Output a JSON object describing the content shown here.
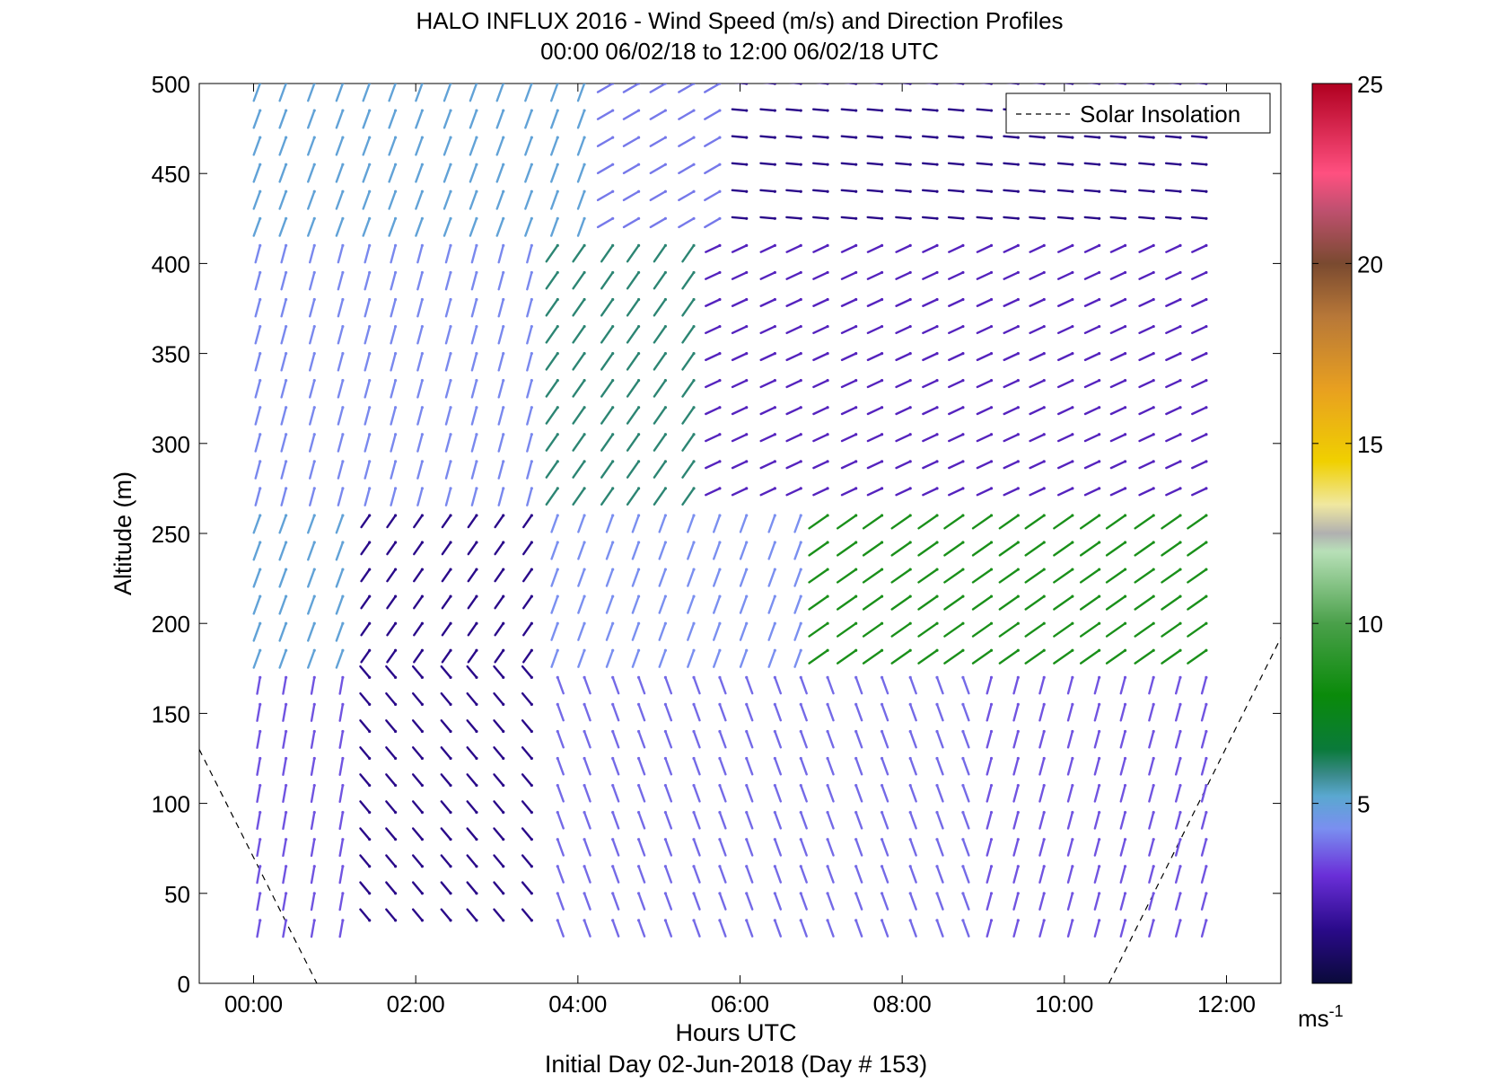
{
  "chart_data": {
    "type": "wind-barb-profile",
    "title": "HALO INFLUX 2016 - Wind Speed (m/s) and Direction Profiles",
    "subtitle": "00:00 06/02/18 to 12:00 06/02/18  UTC",
    "xlabel": "Hours UTC",
    "ylabel": "Altitude (m)",
    "footer": "Initial Day 02-Jun-2018 (Day # 153)",
    "xlim": [
      -0.67,
      12.67
    ],
    "ylim": [
      0,
      500
    ],
    "xticks": [
      0,
      2,
      4,
      6,
      8,
      10,
      12
    ],
    "xtick_labels": [
      "00:00",
      "02:00",
      "04:00",
      "06:00",
      "08:00",
      "10:00",
      "12:00"
    ],
    "yticks": [
      0,
      50,
      100,
      150,
      200,
      250,
      300,
      350,
      400,
      450,
      500
    ],
    "ytick_labels": [
      "0",
      "50",
      "100",
      "150",
      "200",
      "250",
      "300",
      "350",
      "400",
      "450",
      "500"
    ],
    "legend": {
      "entries": [
        "Solar Insolation"
      ],
      "placement": "top-right",
      "line_style": "dashed"
    },
    "colorbar": {
      "label_main": "ms",
      "label_sup": "-1",
      "range": [
        0,
        25
      ],
      "ticks": [
        5,
        10,
        15,
        20,
        25
      ],
      "tick_labels": [
        "5",
        "10",
        "15",
        "20",
        "25"
      ],
      "stops": [
        {
          "v": 0,
          "color": "#0a0a3a"
        },
        {
          "v": 1.5,
          "color": "#2a0a8a"
        },
        {
          "v": 3,
          "color": "#6a2fd8"
        },
        {
          "v": 4.3,
          "color": "#7a8ff0"
        },
        {
          "v": 5.2,
          "color": "#5aa8d0"
        },
        {
          "v": 5.8,
          "color": "#3a8a8a"
        },
        {
          "v": 6.5,
          "color": "#0a7a3a"
        },
        {
          "v": 8,
          "color": "#0a8a0a"
        },
        {
          "v": 10,
          "color": "#4aa04a"
        },
        {
          "v": 12,
          "color": "#b8e0b8"
        },
        {
          "v": 12.5,
          "color": "#b0b0b0"
        },
        {
          "v": 13.3,
          "color": "#f0e8a0"
        },
        {
          "v": 14.5,
          "color": "#f0d000"
        },
        {
          "v": 16.5,
          "color": "#e8a020"
        },
        {
          "v": 18.5,
          "color": "#b87838"
        },
        {
          "v": 20,
          "color": "#7a4a30"
        },
        {
          "v": 21.5,
          "color": "#c05070"
        },
        {
          "v": 22.5,
          "color": "#ff5080"
        },
        {
          "v": 25,
          "color": "#b00020"
        }
      ]
    },
    "solar_insolation": [
      {
        "x": [
          -0.67,
          0.78
        ],
        "y": [
          130,
          0
        ]
      },
      {
        "x": [
          10.55,
          12.67
        ],
        "y": [
          0,
          192
        ]
      }
    ],
    "times": [
      0.08,
      0.4,
      0.75,
      1.1,
      1.43,
      1.75,
      2.08,
      2.43,
      2.75,
      3.08,
      3.43,
      3.75,
      4.08,
      4.43,
      4.75,
      5.08,
      5.43,
      5.75,
      6.08,
      6.43,
      6.75,
      7.08,
      7.43,
      7.75,
      8.1,
      8.43,
      8.75,
      9.1,
      9.43,
      9.75,
      10.1,
      10.43,
      10.75,
      11.1,
      11.43,
      11.75
    ],
    "altitudes": [
      35,
      50,
      65,
      80,
      95,
      110,
      125,
      140,
      155,
      170,
      185,
      200,
      215,
      230,
      245,
      260,
      275,
      290,
      305,
      320,
      335,
      350,
      365,
      380,
      395,
      410,
      425,
      440,
      455,
      470,
      485,
      500
    ],
    "wind_field": [
      {
        "z_range": [
          420,
          500
        ],
        "t_range": [
          0,
          4.3
        ],
        "speed": 5.0,
        "direction_deg": 200
      },
      {
        "z_range": [
          420,
          500
        ],
        "t_range": [
          4.3,
          6.0
        ],
        "speed": 4.0,
        "direction_deg": 240
      },
      {
        "z_range": [
          420,
          500
        ],
        "t_range": [
          6.0,
          12.0
        ],
        "speed": 1.5,
        "direction_deg": 275
      },
      {
        "z_range": [
          270,
          420
        ],
        "t_range": [
          0,
          3.5
        ],
        "speed": 4.2,
        "direction_deg": 195
      },
      {
        "z_range": [
          270,
          420
        ],
        "t_range": [
          3.5,
          5.5
        ],
        "speed": 6.0,
        "direction_deg": 215
      },
      {
        "z_range": [
          270,
          420
        ],
        "t_range": [
          5.5,
          12.0
        ],
        "speed": 2.5,
        "direction_deg": 245
      },
      {
        "z_range": [
          180,
          270
        ],
        "t_range": [
          0,
          1.3
        ],
        "speed": 5.0,
        "direction_deg": 200
      },
      {
        "z_range": [
          180,
          270
        ],
        "t_range": [
          1.3,
          3.5
        ],
        "speed": 1.5,
        "direction_deg": 215
      },
      {
        "z_range": [
          180,
          270
        ],
        "t_range": [
          3.5,
          7.0
        ],
        "speed": 4.3,
        "direction_deg": 200
      },
      {
        "z_range": [
          180,
          270
        ],
        "t_range": [
          7.0,
          12.0
        ],
        "speed": 8.5,
        "direction_deg": 235
      },
      {
        "z_range": [
          20,
          180
        ],
        "t_range": [
          0,
          1.3
        ],
        "speed": 3.5,
        "direction_deg": 190
      },
      {
        "z_range": [
          20,
          180
        ],
        "t_range": [
          1.3,
          3.5
        ],
        "speed": 1.5,
        "direction_deg": 320
      },
      {
        "z_range": [
          20,
          180
        ],
        "t_range": [
          3.5,
          9.0
        ],
        "speed": 3.8,
        "direction_deg": 160
      },
      {
        "z_range": [
          20,
          180
        ],
        "t_range": [
          9.0,
          12.0
        ],
        "speed": 3.5,
        "direction_deg": 195
      }
    ]
  }
}
